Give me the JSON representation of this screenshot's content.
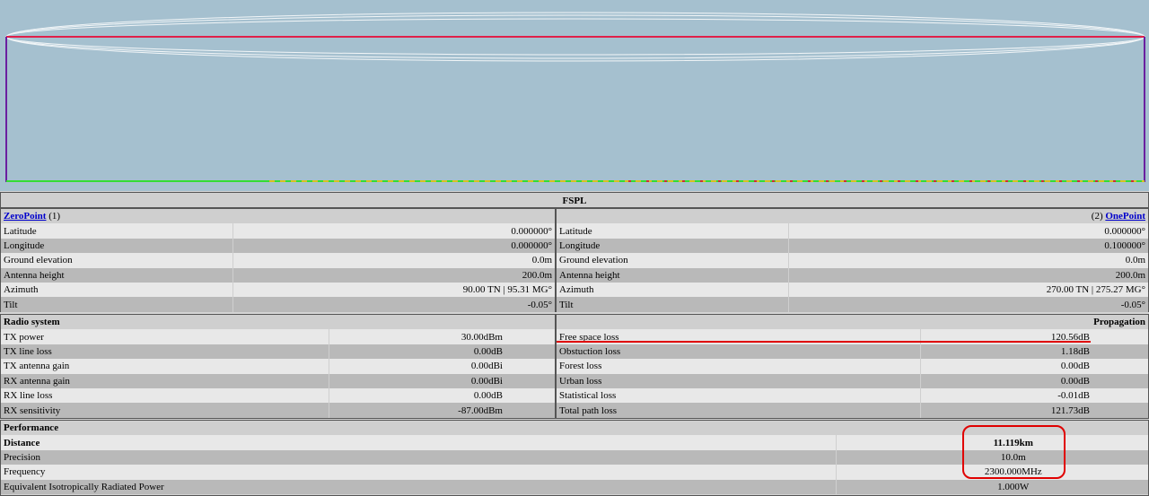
{
  "title": "FSPL",
  "profile": {
    "colors": {
      "sky": "#a5c0cf",
      "los": "#e0204a",
      "mast": "#6a1fa0",
      "fresnel": "#ffffff",
      "ground": "#33dd33"
    }
  },
  "point1": {
    "name": "ZeroPoint",
    "index": "(1)",
    "rows": [
      {
        "label": "Latitude",
        "value": "0.000000°"
      },
      {
        "label": "Longitude",
        "value": "0.000000°"
      },
      {
        "label": "Ground elevation",
        "value": "0.0m"
      },
      {
        "label": "Antenna height",
        "value": "200.0m"
      },
      {
        "label": "Azimuth",
        "value": "90.00 TN | 95.31 MG°"
      },
      {
        "label": "Tilt",
        "value": "-0.05°"
      }
    ]
  },
  "point2": {
    "name": "OnePoint",
    "index": "(2)",
    "rows": [
      {
        "label": "Latitude",
        "value": "0.000000°"
      },
      {
        "label": "Longitude",
        "value": "0.100000°"
      },
      {
        "label": "Ground elevation",
        "value": "0.0m"
      },
      {
        "label": "Antenna height",
        "value": "200.0m"
      },
      {
        "label": "Azimuth",
        "value": "270.00 TN | 275.27 MG°"
      },
      {
        "label": "Tilt",
        "value": "-0.05°"
      }
    ]
  },
  "radio": {
    "title": "Radio system",
    "rows": [
      {
        "label": "TX power",
        "value": "30.00dBm"
      },
      {
        "label": "TX line loss",
        "value": "0.00dB"
      },
      {
        "label": "TX antenna gain",
        "value": "0.00dBi"
      },
      {
        "label": "RX antenna gain",
        "value": "0.00dBi"
      },
      {
        "label": "RX line loss",
        "value": "0.00dB"
      },
      {
        "label": "RX sensitivity",
        "value": "-87.00dBm"
      }
    ]
  },
  "propagation": {
    "title": "Propagation",
    "rows": [
      {
        "label": "Free space loss",
        "value": "120.56dB"
      },
      {
        "label": "Obstuction loss",
        "value": "1.18dB"
      },
      {
        "label": "Forest loss",
        "value": "0.00dB"
      },
      {
        "label": "Urban loss",
        "value": "0.00dB"
      },
      {
        "label": "Statistical loss",
        "value": "-0.01dB"
      },
      {
        "label": "Total path loss",
        "value": "121.73dB"
      }
    ]
  },
  "performance": {
    "title": "Performance",
    "rows": [
      {
        "label": "Distance",
        "value": "11.119km"
      },
      {
        "label": "Precision",
        "value": "10.0m"
      },
      {
        "label": "Frequency",
        "value": "2300.000MHz"
      },
      {
        "label": "Equivalent Isotropically Radiated Power",
        "value": "1.000W"
      }
    ]
  }
}
